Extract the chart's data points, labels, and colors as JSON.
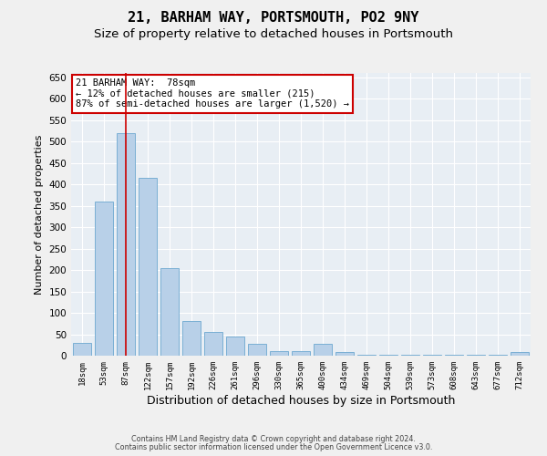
{
  "title1": "21, BARHAM WAY, PORTSMOUTH, PO2 9NY",
  "title2": "Size of property relative to detached houses in Portsmouth",
  "xlabel": "Distribution of detached houses by size in Portsmouth",
  "ylabel": "Number of detached properties",
  "categories": [
    "18sqm",
    "53sqm",
    "87sqm",
    "122sqm",
    "157sqm",
    "192sqm",
    "226sqm",
    "261sqm",
    "296sqm",
    "330sqm",
    "365sqm",
    "400sqm",
    "434sqm",
    "469sqm",
    "504sqm",
    "539sqm",
    "573sqm",
    "608sqm",
    "643sqm",
    "677sqm",
    "712sqm"
  ],
  "values": [
    30,
    360,
    520,
    415,
    205,
    80,
    55,
    45,
    28,
    10,
    10,
    28,
    8,
    3,
    3,
    3,
    3,
    3,
    3,
    3,
    8
  ],
  "bar_color": "#b8d0e8",
  "bar_edge_color": "#7aafd4",
  "background_color": "#e8eef4",
  "grid_color": "#ffffff",
  "vline_x_idx": 2,
  "vline_color": "#cc0000",
  "annotation_text": "21 BARHAM WAY:  78sqm\n← 12% of detached houses are smaller (215)\n87% of semi-detached houses are larger (1,520) →",
  "annotation_box_facecolor": "#ffffff",
  "annotation_box_edgecolor": "#cc0000",
  "ylim": [
    0,
    660
  ],
  "yticks": [
    0,
    50,
    100,
    150,
    200,
    250,
    300,
    350,
    400,
    450,
    500,
    550,
    600,
    650
  ],
  "footer1": "Contains HM Land Registry data © Crown copyright and database right 2024.",
  "footer2": "Contains public sector information licensed under the Open Government Licence v3.0.",
  "title1_fontsize": 11,
  "title2_fontsize": 9.5,
  "xlabel_fontsize": 9,
  "ylabel_fontsize": 8,
  "annotation_fontsize": 7.5,
  "tick_fontsize": 7.5,
  "xtick_fontsize": 6.5,
  "footer_fontsize": 5.8
}
